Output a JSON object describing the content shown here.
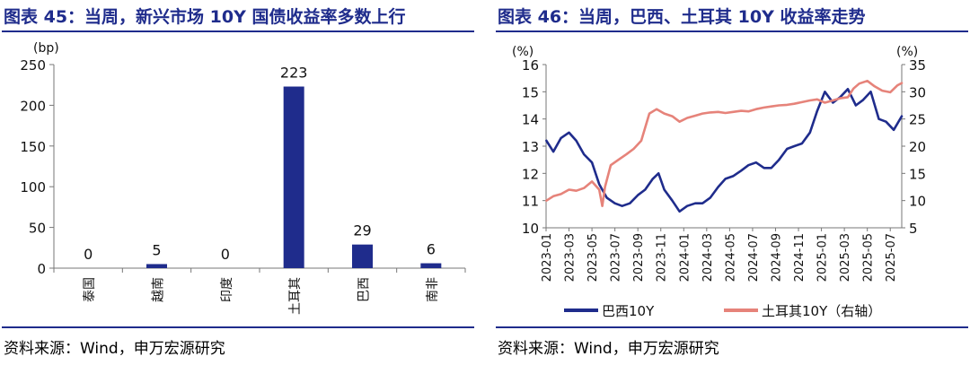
{
  "left": {
    "title": "图表 45：当周，新兴市场 10Y 国债收益率多数上行",
    "source": "资料来源：Wind，申万宏源研究",
    "chart_data": {
      "type": "bar",
      "unit_label": "(bp)",
      "categories": [
        "泰国",
        "越南",
        "印度",
        "土耳其",
        "巴西",
        "南非"
      ],
      "values": [
        0,
        5,
        0,
        223,
        29,
        6
      ],
      "data_labels": [
        "0",
        "5",
        "0",
        "223",
        "29",
        "6"
      ],
      "ylim": [
        0,
        250
      ],
      "yticks": [
        0,
        50,
        100,
        150,
        200,
        250
      ],
      "grid": false,
      "bar_color": "#1f2c8c"
    }
  },
  "right": {
    "title": "图表 46：当周，巴西、土耳其 10Y 收益率走势",
    "source": "资料来源：Wind，申万宏源研究",
    "chart_data": {
      "type": "line",
      "left_unit_label": "(%)",
      "right_unit_label": "(%)",
      "ylim_left": [
        10,
        16
      ],
      "yticks_left": [
        10,
        11,
        12,
        13,
        14,
        15,
        16
      ],
      "ylim_right": [
        5,
        35
      ],
      "yticks_right": [
        5,
        10,
        15,
        20,
        25,
        30,
        35
      ],
      "xlim": [
        "2023-01",
        "2025-08"
      ],
      "x_ticks": [
        "2023-01",
        "2023-03",
        "2023-05",
        "2023-07",
        "2023-09",
        "2023-11",
        "2024-01",
        "2024-03",
        "2024-05",
        "2024-07",
        "2024-09",
        "2024-11",
        "2025-01",
        "2025-03",
        "2025-05",
        "2025-07"
      ],
      "legend_position": "bottom",
      "grid": false,
      "series": [
        {
          "name": "巴西10Y",
          "axis": "left",
          "color": "#1f2c8c",
          "x": [
            "2023-01-02",
            "2023-01-20",
            "2023-02-10",
            "2023-03-01",
            "2023-03-20",
            "2023-04-10",
            "2023-05-01",
            "2023-05-20",
            "2023-06-10",
            "2023-07-01",
            "2023-07-20",
            "2023-08-10",
            "2023-09-01",
            "2023-09-20",
            "2023-10-10",
            "2023-10-25",
            "2023-11-10",
            "2023-12-01",
            "2023-12-20",
            "2024-01-10",
            "2024-02-01",
            "2024-02-20",
            "2024-03-10",
            "2024-04-01",
            "2024-04-20",
            "2024-05-10",
            "2024-06-01",
            "2024-06-20",
            "2024-07-10",
            "2024-08-01",
            "2024-08-20",
            "2024-09-10",
            "2024-10-01",
            "2024-10-20",
            "2024-11-10",
            "2024-12-01",
            "2024-12-20",
            "2025-01-10",
            "2025-02-01",
            "2025-02-20",
            "2025-03-10",
            "2025-04-01",
            "2025-04-20",
            "2025-05-10",
            "2025-06-01",
            "2025-06-20",
            "2025-07-10",
            "2025-07-31"
          ],
          "values": [
            13.2,
            12.8,
            13.3,
            13.5,
            13.2,
            12.7,
            12.4,
            11.6,
            11.1,
            10.9,
            10.8,
            10.9,
            11.2,
            11.4,
            11.8,
            12.0,
            11.4,
            11.0,
            10.6,
            10.8,
            10.9,
            10.9,
            11.1,
            11.5,
            11.8,
            11.9,
            12.1,
            12.3,
            12.4,
            12.2,
            12.2,
            12.5,
            12.9,
            13.0,
            13.1,
            13.5,
            14.3,
            15.0,
            14.6,
            14.8,
            15.1,
            14.5,
            14.7,
            15.0,
            14.0,
            13.9,
            13.6,
            14.1
          ]
        },
        {
          "name": "土耳其10Y（右轴）",
          "axis": "right",
          "color": "#e6837a",
          "x": [
            "2023-01-02",
            "2023-01-20",
            "2023-02-10",
            "2023-03-01",
            "2023-03-20",
            "2023-04-10",
            "2023-05-01",
            "2023-05-20",
            "2023-05-28",
            "2023-06-05",
            "2023-06-20",
            "2023-07-10",
            "2023-08-01",
            "2023-08-20",
            "2023-09-10",
            "2023-10-01",
            "2023-10-20",
            "2023-11-10",
            "2023-12-01",
            "2023-12-20",
            "2024-01-10",
            "2024-02-01",
            "2024-02-20",
            "2024-03-10",
            "2024-04-01",
            "2024-04-20",
            "2024-05-10",
            "2024-06-01",
            "2024-06-20",
            "2024-07-10",
            "2024-08-01",
            "2024-08-20",
            "2024-09-10",
            "2024-10-01",
            "2024-10-20",
            "2024-11-10",
            "2024-12-01",
            "2024-12-20",
            "2025-01-10",
            "2025-02-01",
            "2025-02-20",
            "2025-03-10",
            "2025-03-25",
            "2025-04-10",
            "2025-05-01",
            "2025-05-20",
            "2025-06-10",
            "2025-07-01",
            "2025-07-20",
            "2025-07-31"
          ],
          "values": [
            10.0,
            10.8,
            11.2,
            12.0,
            11.8,
            12.3,
            13.5,
            12.0,
            9.0,
            12.5,
            16.5,
            17.5,
            18.5,
            19.5,
            21.0,
            26.0,
            26.8,
            26.0,
            25.5,
            24.5,
            25.2,
            25.6,
            26.0,
            26.2,
            26.3,
            26.1,
            26.3,
            26.5,
            26.4,
            26.8,
            27.1,
            27.3,
            27.5,
            27.6,
            27.8,
            28.1,
            28.4,
            28.6,
            28.0,
            28.4,
            28.8,
            29.0,
            30.6,
            31.5,
            32.0,
            31.0,
            30.2,
            29.9,
            31.2,
            31.6
          ]
        }
      ]
    }
  }
}
